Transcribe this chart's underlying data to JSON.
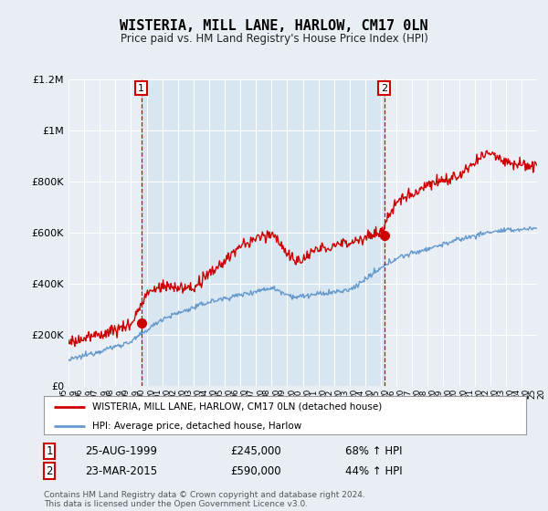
{
  "title": "WISTERIA, MILL LANE, HARLOW, CM17 0LN",
  "subtitle": "Price paid vs. HM Land Registry's House Price Index (HPI)",
  "legend_line1": "WISTERIA, MILL LANE, HARLOW, CM17 0LN (detached house)",
  "legend_line2": "HPI: Average price, detached house, Harlow",
  "annotation1": {
    "num": "1",
    "date": "25-AUG-1999",
    "price": "£245,000",
    "hpi": "68% ↑ HPI"
  },
  "annotation2": {
    "num": "2",
    "date": "23-MAR-2015",
    "price": "£590,000",
    "hpi": "44% ↑ HPI"
  },
  "vline1_year": 1999.65,
  "vline2_year": 2015.22,
  "point1_year": 1999.65,
  "point1_price": 245000,
  "point2_year": 2015.22,
  "point2_price": 590000,
  "red_color": "#cc0000",
  "blue_color": "#6699cc",
  "fill_color": "#d0e4f0",
  "background_color": "#e8eef4",
  "plot_bg_color": "#e8eef4",
  "ylim": [
    0,
    1200000
  ],
  "yticks": [
    0,
    200000,
    400000,
    600000,
    800000,
    1000000,
    1200000
  ],
  "footer": "Contains HM Land Registry data © Crown copyright and database right 2024.\nThis data is licensed under the Open Government Licence v3.0."
}
